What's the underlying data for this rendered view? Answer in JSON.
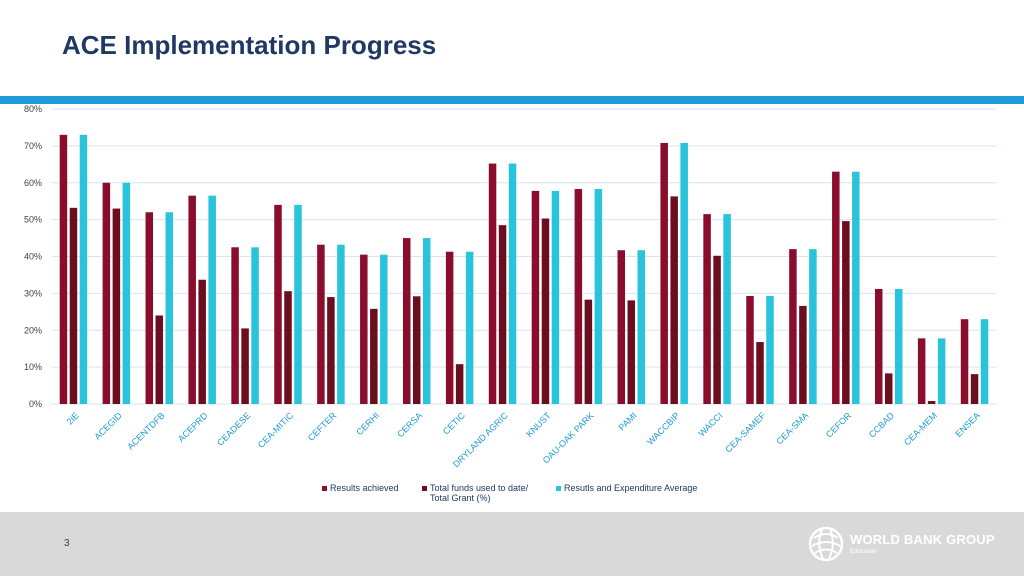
{
  "page": {
    "title": "ACE Implementation Progress",
    "page_number": "3"
  },
  "branding": {
    "org": "WORLD BANK GROUP",
    "unit": "Education"
  },
  "colors": {
    "results": "#8b0d2c",
    "funds": "#6b0f1f",
    "average": "#29c3dc",
    "grid": "#d3e6f3",
    "band": "#1e9ad6"
  },
  "chart_data": {
    "type": "bar",
    "title": "",
    "xlabel": "",
    "ylabel": "",
    "ylim": [
      0,
      80
    ],
    "yticks": [
      0,
      10,
      20,
      30,
      40,
      50,
      60,
      70,
      80
    ],
    "ytick_labels": [
      "0%",
      "10%",
      "20%",
      "30%",
      "40%",
      "50%",
      "60%",
      "70%",
      "80%"
    ],
    "grid": true,
    "legend_position": "bottom",
    "categories": [
      "2iE",
      "ACEGID",
      "ACENTDFB",
      "ACEPRD",
      "CEADESE",
      "CEA-MITIC",
      "CEFTER",
      "CERHI",
      "CERSA",
      "CETIC",
      "DRYLAND AGRIC",
      "KNUST",
      "OAU-OAK PARK",
      "PAMI",
      "WACCBIP",
      "WACCI",
      "CEA-SAMEF",
      "CEA-SMA",
      "CEFOR",
      "CCBAD",
      "CEA-MEM",
      "ENSEA"
    ],
    "series": [
      {
        "name": "Results achieved",
        "values": [
          73,
          60,
          52,
          56.5,
          42.5,
          54,
          43.2,
          40.5,
          45,
          41.3,
          65.2,
          57.8,
          58.3,
          41.7,
          70.8,
          51.5,
          29.3,
          42,
          63,
          31.2,
          17.8,
          23
        ]
      },
      {
        "name": "Total funds used to date/ Total Grant (%)",
        "values": [
          53.2,
          53,
          24,
          33.7,
          20.5,
          30.6,
          29,
          25.8,
          29.2,
          10.8,
          48.5,
          50.3,
          28.3,
          28.1,
          56.3,
          40.2,
          16.8,
          26.6,
          49.6,
          8.3,
          0.8,
          8.1
        ]
      },
      {
        "name": "Resutls and Expenditure Average",
        "values": [
          73,
          60,
          52,
          56.5,
          42.5,
          54,
          43.2,
          40.5,
          45,
          41.3,
          65.2,
          57.8,
          58.3,
          41.7,
          70.8,
          51.5,
          29.3,
          42,
          63,
          31.2,
          17.8,
          23
        ]
      }
    ]
  }
}
